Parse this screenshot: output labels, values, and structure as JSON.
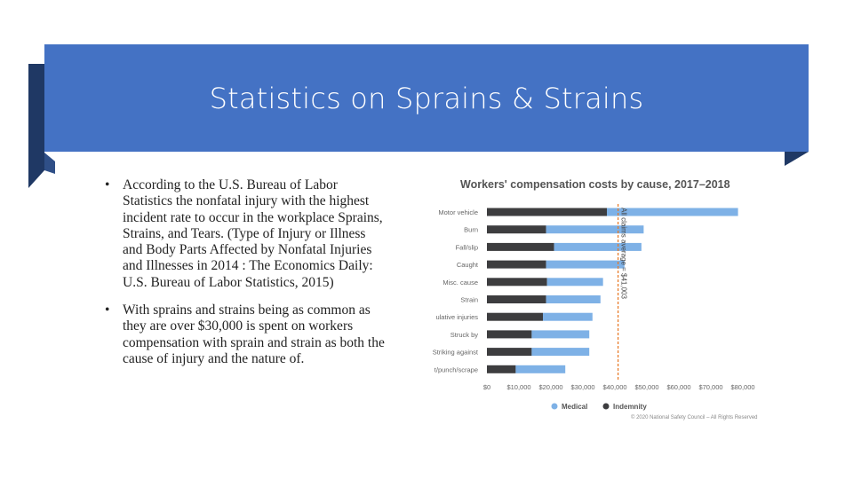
{
  "slide": {
    "title": "Statistics on Sprains & Strains",
    "bullets": [
      "According to the U.S. Bureau of Labor Statistics the nonfatal  injury with the highest incident rate to occur in the workplace Sprains, Strains, and Tears. (Type of Injury or Illness and Body Parts Affected by Nonfatal Injuries and Illnesses in 2014 : The Economics Daily: U.S. Bureau of Labor Statistics, 2015)",
      "With sprains and strains being as common as they are over $30,000 is spent on workers compensation with sprain and strain as both the cause of injury and the nature of."
    ],
    "bullet_marker": "•",
    "colors": {
      "banner": "#4472c4",
      "banner_shadow": "#1f3864",
      "medical": "#7eb1e6",
      "indemnity": "#3d3d3f",
      "average_line": "#e87722"
    }
  },
  "chart_data": {
    "type": "bar",
    "orientation": "horizontal",
    "stacked": true,
    "title": "Workers' compensation costs by cause, 2017–2018",
    "categories": [
      "Motor vehicle",
      "Burn",
      "Fall/slip",
      "Caught",
      "Misc. cause",
      "Strain",
      "Cumulative injuries",
      "Struck by",
      "Striking against",
      "Cut/punch/scrape"
    ],
    "category_labels_shown": [
      "Motor vehicle",
      "Burn",
      "Fall/slip",
      "Caught",
      "Misc. cause",
      "Strain",
      "ulative injuries",
      "Struck by",
      "Striking against",
      "t/punch/scrape"
    ],
    "series": [
      {
        "name": "Indemnity",
        "color": "#3d3d3f",
        "values": [
          37500,
          18500,
          21000,
          18500,
          18800,
          18500,
          17500,
          14000,
          14000,
          9000
        ]
      },
      {
        "name": "Medical",
        "color": "#7eb1e6",
        "values": [
          41000,
          30500,
          27300,
          24500,
          17500,
          17000,
          15500,
          18000,
          18000,
          15500
        ]
      }
    ],
    "average": {
      "label": "All claims average = $41,003",
      "value": 41003
    },
    "xlim": [
      0,
      80000
    ],
    "x_ticks": [
      "$0",
      "$10,000",
      "$20,000",
      "$30,000",
      "$40,000",
      "$50,000",
      "$60,000",
      "$70,000",
      "$80,000"
    ],
    "legend": [
      "Medical",
      "Indemnity"
    ],
    "legend_position": "bottom",
    "footnote": "© 2020 National Safety Council – All Rights Reserved",
    "grid": false
  }
}
